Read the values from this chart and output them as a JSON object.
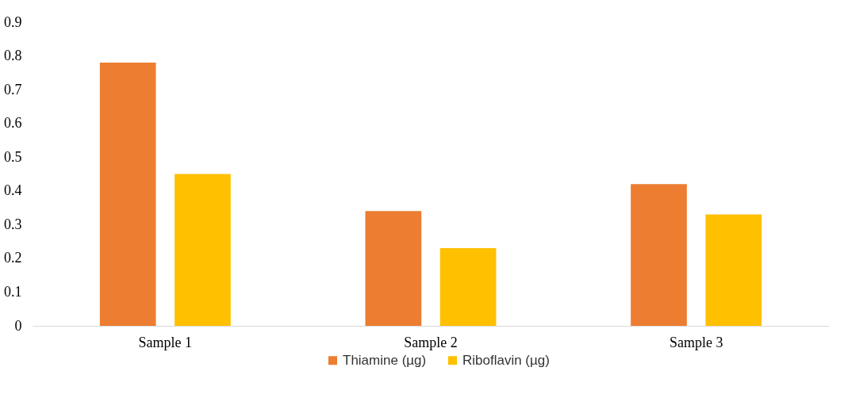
{
  "chart_data": {
    "type": "bar",
    "categories": [
      "Sample 1",
      "Sample 2",
      "Sample 3"
    ],
    "series": [
      {
        "name": "Thiamine (µg)",
        "color": "#ed7d31",
        "values": [
          0.78,
          0.34,
          0.42
        ]
      },
      {
        "name": "Riboflavin (µg)",
        "color": "#ffc000",
        "values": [
          0.45,
          0.23,
          0.33
        ]
      }
    ],
    "ylim": [
      0,
      0.9
    ],
    "yticks": [
      0,
      0.1,
      0.2,
      0.3,
      0.4,
      0.5,
      0.6,
      0.7,
      0.8,
      0.9
    ],
    "grid": false,
    "legend": "bottom"
  }
}
